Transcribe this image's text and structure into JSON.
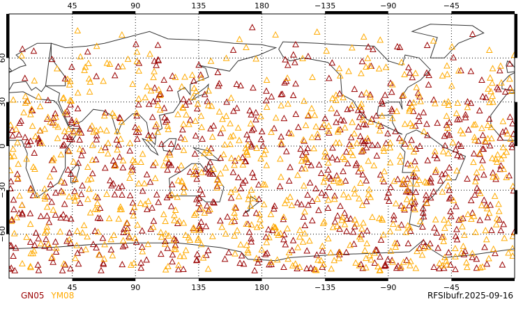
{
  "map": {
    "projection": "cylindrical equidistant",
    "lon_range": [
      0,
      360
    ],
    "lat_range": [
      -90,
      90
    ],
    "lon_tick_labels": [
      "45",
      "90",
      "135",
      "180",
      "−135",
      "−90",
      "−45"
    ],
    "lon_ticks": [
      45,
      90,
      135,
      180,
      225,
      270,
      315
    ],
    "lat_tick_labels": [
      "60",
      "30",
      "0",
      "−30",
      "−60"
    ],
    "lat_ticks": [
      60,
      30,
      0,
      -30,
      -60
    ],
    "gridlines": "dotted",
    "marker": "triangle-outline"
  },
  "legend": {
    "series": [
      {
        "name": "GN05",
        "color": "#990000"
      },
      {
        "name": "YM08",
        "color": "#ffaa00"
      }
    ]
  },
  "footer": {
    "caption": "RFSIbufr.2025-09-16"
  },
  "colors": {
    "coastline": "#333333",
    "frame": "#000000"
  }
}
